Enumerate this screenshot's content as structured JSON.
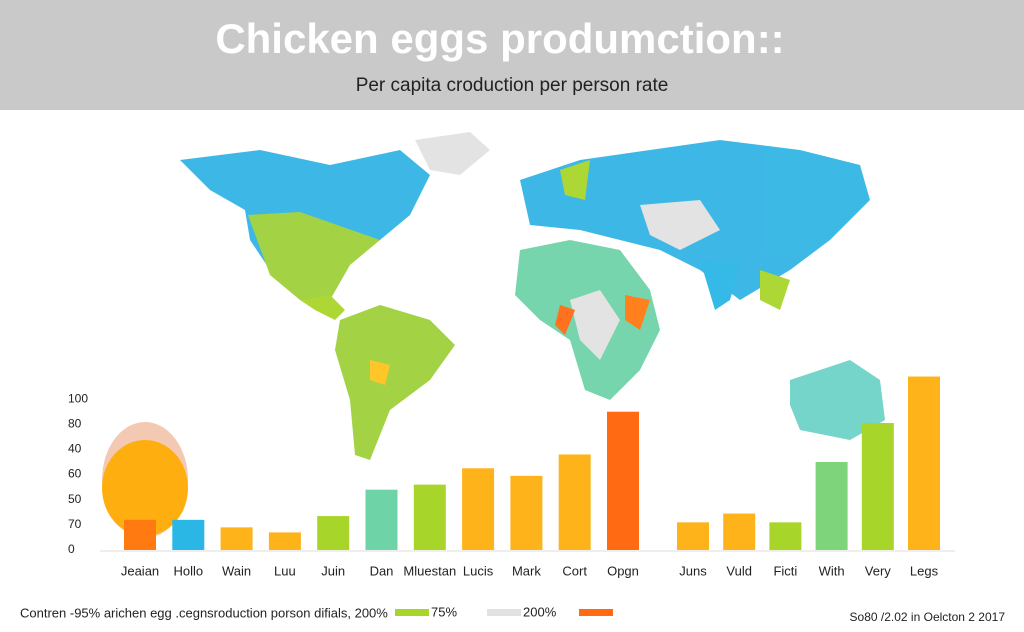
{
  "chart_data": {
    "type": "bar",
    "title": "Chicken eggs produmction::",
    "subtitle": "Per capita croduction per person rate",
    "categories": [
      "Jeaian",
      "Hollo",
      "Wain",
      "Luu",
      "Juin",
      "Dan",
      "Mluestan",
      "Lucis",
      "Mark",
      "Cort",
      "Opgn",
      "Juns",
      "Vuld",
      "Ficti",
      "With",
      "Very",
      "Legs"
    ],
    "values": [
      24,
      24,
      18,
      14,
      27,
      48,
      52,
      65,
      59,
      76,
      110,
      22,
      29,
      22,
      70,
      101,
      138
    ],
    "colors": [
      "#ff7a10",
      "#2bb7e6",
      "#ffb31a",
      "#ffb31a",
      "#a8d52a",
      "#6fd3a8",
      "#a8d52a",
      "#ffb31a",
      "#ffb31a",
      "#ffb31a",
      "#ff6a13",
      "#ffb31a",
      "#ffb31a",
      "#a8d52a",
      "#7ed47a",
      "#a8d52a",
      "#ffb31a"
    ],
    "ylim": [
      0,
      140
    ],
    "yticks": [
      0,
      {
        "value": 20,
        "label": "70"
      },
      {
        "value": 40,
        "label": "50"
      },
      60,
      {
        "value": 80,
        "label": "40"
      },
      {
        "value": 100,
        "label": "80"
      },
      {
        "value": 120,
        "label": "100"
      }
    ],
    "legend_text": "Contren -95% arichen egg .cegnsroduction porson difials, 200%",
    "legend": [
      {
        "label": "75%",
        "color": "#a8d52a"
      },
      {
        "label": "200%",
        "color": "#e2e2e2"
      },
      {
        "color": "#ff6a13"
      }
    ],
    "source": "So80 /2.02 in Oelcton 2 2017"
  }
}
